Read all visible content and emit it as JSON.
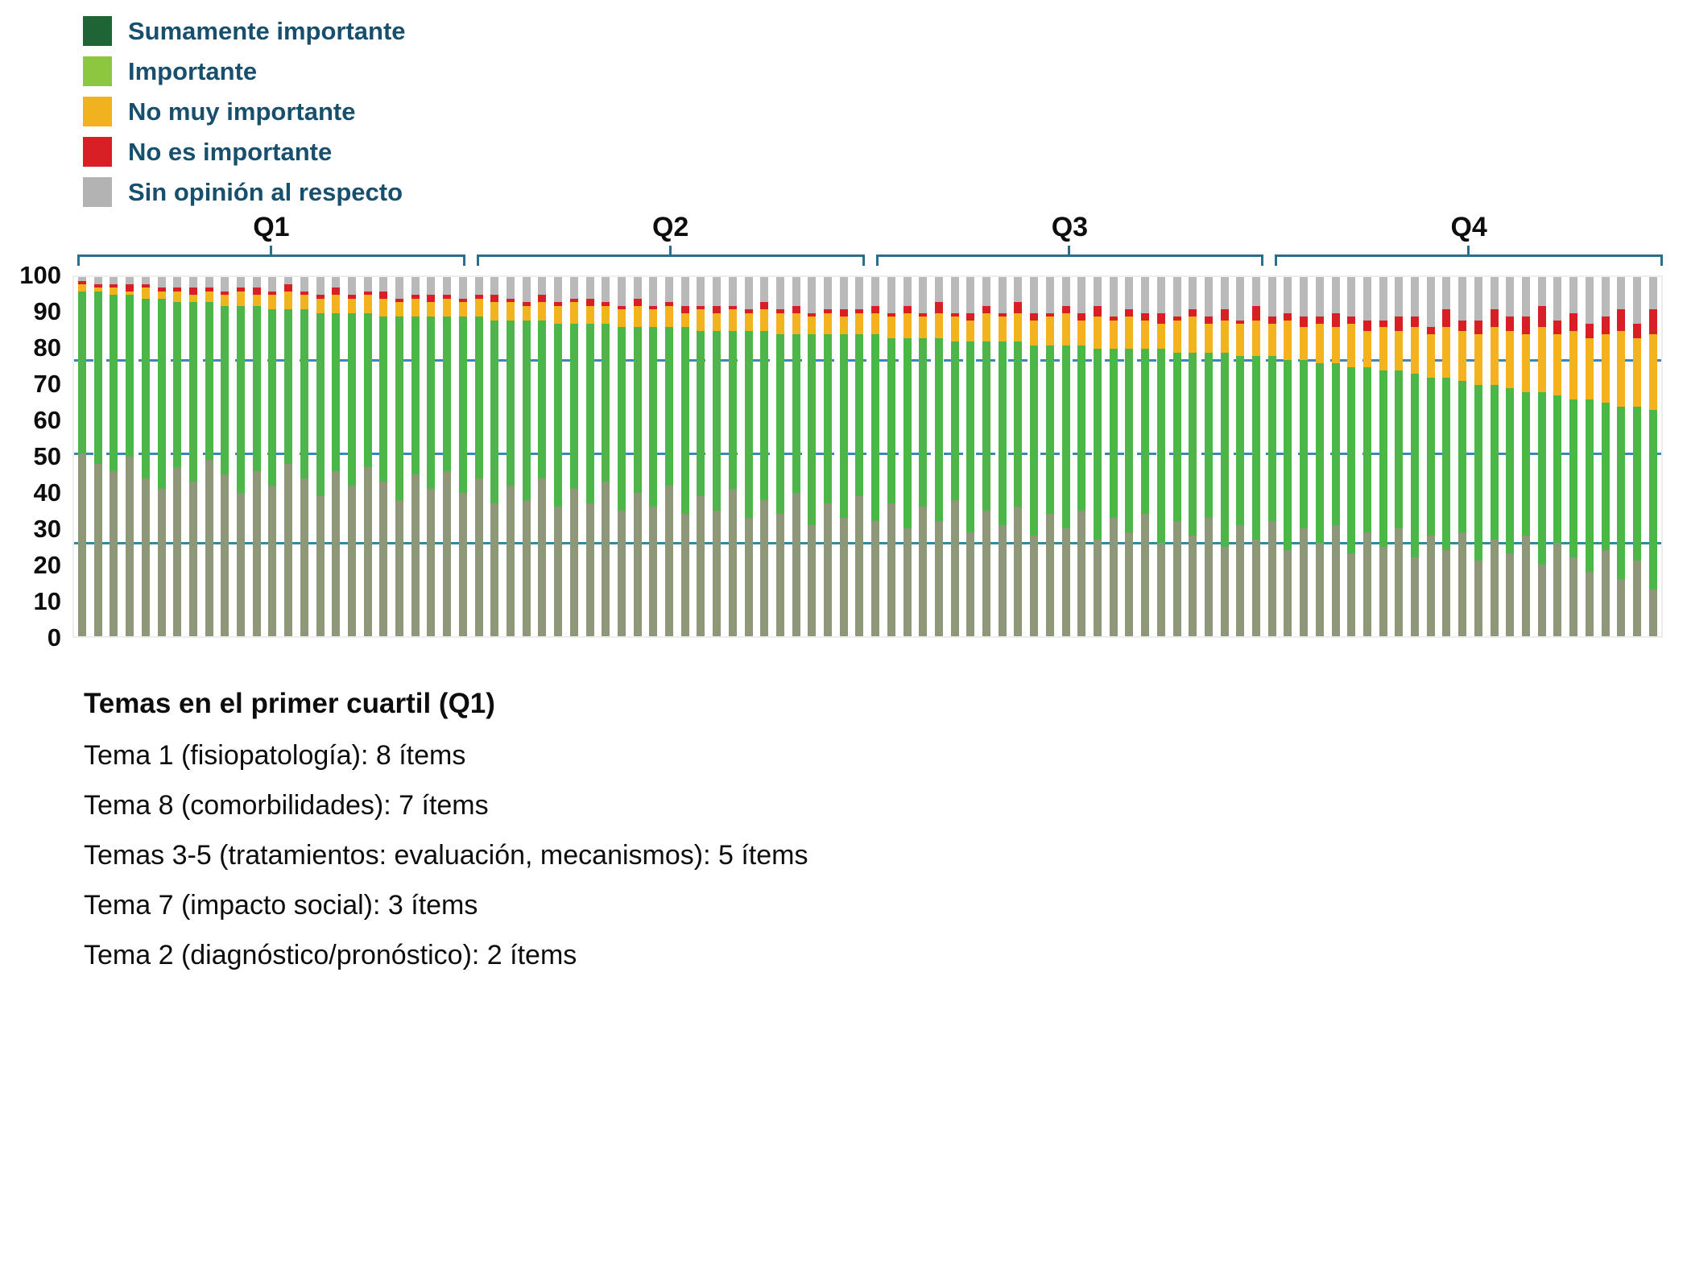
{
  "legend": {
    "text_color": "#174f6d",
    "items": [
      {
        "label": "Sumamente importante",
        "color": "#1e6434"
      },
      {
        "label": "Importante",
        "color": "#8dc63f"
      },
      {
        "label": "No muy importante",
        "color": "#f0b21e"
      },
      {
        "label": "No es importante",
        "color": "#d91f26"
      },
      {
        "label": "Sin opinión al respecto",
        "color": "#b3b3b3"
      }
    ]
  },
  "chart_data": {
    "type": "bar",
    "stacked": true,
    "percent": true,
    "title": "",
    "xlabel": "",
    "ylabel": "",
    "ylim": [
      0,
      100
    ],
    "yticks": [
      0,
      10,
      20,
      30,
      40,
      50,
      60,
      70,
      80,
      90,
      100
    ],
    "quartiles": [
      "Q1",
      "Q2",
      "Q3",
      "Q4"
    ],
    "items_per_quartile": 25,
    "legend_position": "top-left",
    "series": [
      {
        "name": "Sumamente importante",
        "color": "#8f9779"
      },
      {
        "name": "Importante",
        "color": "#4cb748"
      },
      {
        "name": "No muy importante",
        "color": "#f2b31e"
      },
      {
        "name": "No es importante",
        "color": "#d91f26"
      },
      {
        "name": "Sin opinión al respecto",
        "color": "#b9b9b9"
      }
    ],
    "reference_lines": [
      {
        "value": 76.5,
        "style": "dashed",
        "color": "#3e87b8"
      },
      {
        "value": 50.5,
        "style": "dashed",
        "color": "#3e87b8"
      },
      {
        "value": 25.5,
        "style": "solid",
        "color": "#2f8ba0"
      }
    ],
    "bars": [
      [
        51,
        45,
        2,
        1,
        1
      ],
      [
        48,
        48,
        1,
        1,
        2
      ],
      [
        46,
        49,
        2,
        1,
        2
      ],
      [
        50,
        45,
        1,
        2,
        2
      ],
      [
        44,
        50,
        3,
        1,
        2
      ],
      [
        41,
        53,
        2,
        1,
        3
      ],
      [
        47,
        46,
        3,
        1,
        3
      ],
      [
        43,
        50,
        2,
        2,
        3
      ],
      [
        49,
        44,
        3,
        1,
        3
      ],
      [
        45,
        47,
        3,
        1,
        4
      ],
      [
        40,
        52,
        4,
        1,
        3
      ],
      [
        46,
        46,
        3,
        2,
        3
      ],
      [
        42,
        49,
        4,
        1,
        4
      ],
      [
        48,
        43,
        5,
        2,
        2
      ],
      [
        44,
        47,
        4,
        1,
        4
      ],
      [
        39,
        51,
        4,
        1,
        5
      ],
      [
        46,
        44,
        5,
        2,
        3
      ],
      [
        42,
        48,
        4,
        1,
        5
      ],
      [
        47,
        43,
        5,
        1,
        4
      ],
      [
        43,
        46,
        5,
        2,
        4
      ],
      [
        38,
        51,
        4,
        1,
        6
      ],
      [
        45,
        44,
        5,
        1,
        5
      ],
      [
        41,
        48,
        4,
        2,
        5
      ],
      [
        46,
        43,
        5,
        1,
        5
      ],
      [
        40,
        49,
        4,
        1,
        6
      ],
      [
        44,
        45,
        5,
        1,
        5
      ],
      [
        37,
        51,
        5,
        2,
        5
      ],
      [
        42,
        46,
        5,
        1,
        6
      ],
      [
        38,
        50,
        4,
        1,
        7
      ],
      [
        44,
        44,
        5,
        2,
        5
      ],
      [
        36,
        51,
        5,
        1,
        7
      ],
      [
        41,
        46,
        6,
        1,
        6
      ],
      [
        37,
        50,
        5,
        2,
        6
      ],
      [
        43,
        44,
        5,
        1,
        7
      ],
      [
        35,
        51,
        5,
        1,
        8
      ],
      [
        40,
        46,
        6,
        2,
        6
      ],
      [
        36,
        50,
        5,
        1,
        8
      ],
      [
        42,
        44,
        6,
        1,
        7
      ],
      [
        34,
        52,
        4,
        2,
        8
      ],
      [
        39,
        46,
        6,
        1,
        8
      ],
      [
        35,
        50,
        5,
        2,
        8
      ],
      [
        41,
        44,
        6,
        1,
        8
      ],
      [
        33,
        52,
        5,
        1,
        9
      ],
      [
        38,
        47,
        6,
        2,
        7
      ],
      [
        34,
        50,
        6,
        1,
        9
      ],
      [
        40,
        44,
        6,
        2,
        8
      ],
      [
        31,
        53,
        5,
        1,
        10
      ],
      [
        37,
        47,
        6,
        1,
        9
      ],
      [
        33,
        51,
        5,
        2,
        9
      ],
      [
        39,
        45,
        6,
        1,
        9
      ],
      [
        32,
        52,
        6,
        2,
        8
      ],
      [
        37,
        46,
        6,
        1,
        10
      ],
      [
        30,
        53,
        7,
        2,
        8
      ],
      [
        36,
        47,
        6,
        1,
        10
      ],
      [
        32,
        51,
        7,
        3,
        7
      ],
      [
        38,
        44,
        7,
        1,
        10
      ],
      [
        29,
        53,
        6,
        2,
        10
      ],
      [
        35,
        47,
        8,
        2,
        8
      ],
      [
        31,
        51,
        7,
        1,
        10
      ],
      [
        36,
        46,
        8,
        3,
        7
      ],
      [
        28,
        53,
        7,
        2,
        10
      ],
      [
        34,
        47,
        8,
        1,
        10
      ],
      [
        30,
        51,
        9,
        2,
        8
      ],
      [
        35,
        46,
        7,
        2,
        10
      ],
      [
        27,
        53,
        9,
        3,
        8
      ],
      [
        33,
        47,
        8,
        1,
        11
      ],
      [
        29,
        51,
        9,
        2,
        9
      ],
      [
        34,
        46,
        8,
        2,
        10
      ],
      [
        26,
        54,
        7,
        3,
        10
      ],
      [
        32,
        47,
        9,
        1,
        11
      ],
      [
        28,
        51,
        10,
        2,
        9
      ],
      [
        33,
        46,
        8,
        2,
        11
      ],
      [
        25,
        54,
        9,
        3,
        9
      ],
      [
        31,
        47,
        9,
        1,
        12
      ],
      [
        27,
        51,
        10,
        4,
        8
      ],
      [
        32,
        46,
        9,
        2,
        11
      ],
      [
        24,
        53,
        11,
        2,
        10
      ],
      [
        30,
        47,
        9,
        3,
        11
      ],
      [
        26,
        50,
        11,
        2,
        11
      ],
      [
        31,
        45,
        10,
        4,
        10
      ],
      [
        23,
        52,
        12,
        2,
        11
      ],
      [
        29,
        46,
        10,
        3,
        12
      ],
      [
        25,
        49,
        12,
        2,
        12
      ],
      [
        30,
        44,
        11,
        4,
        11
      ],
      [
        22,
        51,
        13,
        3,
        11
      ],
      [
        28,
        44,
        12,
        2,
        14
      ],
      [
        24,
        48,
        14,
        5,
        9
      ],
      [
        29,
        42,
        14,
        3,
        12
      ],
      [
        21,
        49,
        14,
        4,
        12
      ],
      [
        27,
        43,
        16,
        5,
        9
      ],
      [
        23,
        46,
        16,
        4,
        11
      ],
      [
        28,
        40,
        16,
        5,
        11
      ],
      [
        20,
        48,
        18,
        6,
        8
      ],
      [
        26,
        41,
        17,
        4,
        12
      ],
      [
        22,
        44,
        19,
        5,
        10
      ],
      [
        18,
        48,
        17,
        4,
        13
      ],
      [
        24,
        41,
        19,
        5,
        11
      ],
      [
        16,
        48,
        21,
        6,
        9
      ],
      [
        21,
        43,
        19,
        4,
        13
      ],
      [
        13,
        50,
        21,
        7,
        9
      ]
    ]
  },
  "footer": {
    "title": "Temas en el primer cuartil (Q1)",
    "lines": [
      "Tema 1 (fisiopatología): 8 ítems",
      "Tema 8 (comorbilidades): 7 ítems",
      "Temas 3-5 (tratamientos: evaluación, mecanismos): 5 ítems",
      "Tema 7 (impacto social): 3 ítems",
      "Tema 2 (diagnóstico/pronóstico): 2 ítems"
    ]
  }
}
